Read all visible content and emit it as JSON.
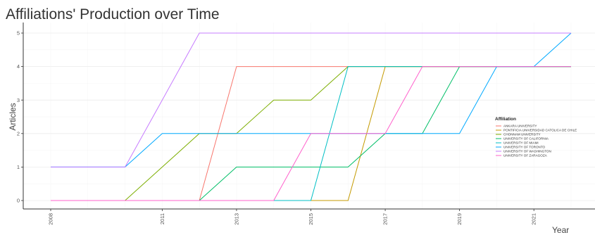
{
  "chart_data": {
    "type": "line",
    "title": "Affiliations' Production over Time",
    "xlabel": "Year",
    "ylabel": "Articles",
    "xlim": [
      2008,
      2022
    ],
    "ylim": [
      0,
      5
    ],
    "x_ticks": [
      2008,
      2011,
      2013,
      2015,
      2017,
      2019,
      2021
    ],
    "y_ticks": [
      0,
      1,
      2,
      3,
      4,
      5
    ],
    "grid": true,
    "legend": {
      "title": "Affiliation",
      "position": "right"
    },
    "x": [
      2008,
      2009,
      2010,
      2011,
      2012,
      2013,
      2014,
      2015,
      2016,
      2017,
      2018,
      2019,
      2020,
      2021,
      2022
    ],
    "series": [
      {
        "name": "ANKARA UNIVERSITY",
        "color": "#F8766D",
        "values": [
          0,
          0,
          0,
          0,
          0,
          4,
          4,
          4,
          4,
          4,
          4,
          4,
          4,
          4,
          4
        ]
      },
      {
        "name": "PONTIFICIA UNIVERSIDAD CATOLICA DE CHILE",
        "color": "#C49A00",
        "values": [
          0,
          0,
          0,
          0,
          0,
          0,
          0,
          0,
          0,
          4,
          4,
          4,
          4,
          4,
          4
        ]
      },
      {
        "name": "CHONNAM UNIVERSITY",
        "color": "#7CAE00",
        "values": [
          0,
          0,
          0,
          1,
          2,
          2,
          3,
          3,
          4,
          4,
          4,
          4,
          4,
          4,
          4
        ]
      },
      {
        "name": "UNIVERSITY OF CALIFORNIA",
        "color": "#00BE67",
        "values": [
          0,
          0,
          0,
          0,
          0,
          1,
          1,
          1,
          1,
          2,
          2,
          4,
          4,
          4,
          4
        ]
      },
      {
        "name": "UNIVERSITY OF MIAMI",
        "color": "#00BFC4",
        "values": [
          0,
          0,
          0,
          0,
          0,
          0,
          0,
          0,
          4,
          4,
          4,
          4,
          4,
          4,
          4
        ]
      },
      {
        "name": "UNIVERSITY OF TORONTO",
        "color": "#00A9FF",
        "values": [
          1,
          1,
          1,
          2,
          2,
          2,
          2,
          2,
          2,
          2,
          2,
          2,
          4,
          4,
          5
        ]
      },
      {
        "name": "UNIVERSITY OF WASHINGTON",
        "color": "#C77CFF",
        "values": [
          1,
          1,
          1,
          3,
          5,
          5,
          5,
          5,
          5,
          5,
          5,
          5,
          5,
          5,
          5
        ]
      },
      {
        "name": "UNIVERSITY OF ZARAGOZA",
        "color": "#FF61CC",
        "values": [
          0,
          0,
          0,
          0,
          0,
          0,
          0,
          2,
          2,
          2,
          4,
          4,
          4,
          4,
          4
        ]
      }
    ]
  }
}
